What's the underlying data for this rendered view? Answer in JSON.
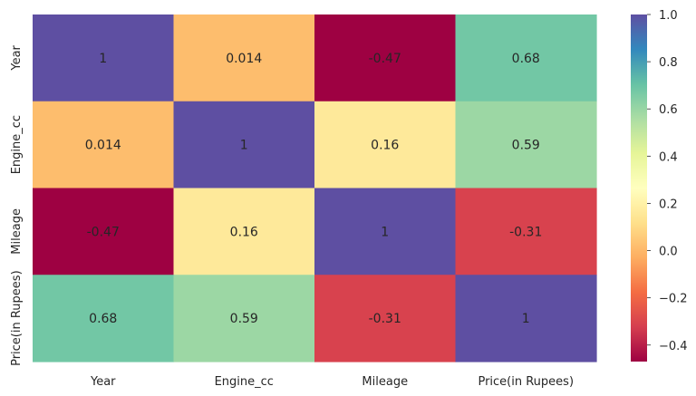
{
  "chart_data": {
    "type": "heatmap",
    "title": "",
    "xlabel": "",
    "ylabel": "",
    "x_labels": [
      "Year",
      "Engine_cc",
      "Mileage",
      "Price(in Rupees)"
    ],
    "y_labels": [
      "Year",
      "Engine_cc",
      "Mileage",
      "Price(in Rupees)"
    ],
    "values": [
      [
        1,
        0.014,
        -0.47,
        0.68
      ],
      [
        0.014,
        1,
        0.16,
        0.59
      ],
      [
        -0.47,
        0.16,
        1,
        -0.31
      ],
      [
        0.68,
        0.59,
        -0.31,
        1
      ]
    ],
    "cell_labels": [
      [
        "1",
        "0.014",
        "-0.47",
        "0.68"
      ],
      [
        "0.014",
        "1",
        "0.16",
        "0.59"
      ],
      [
        "-0.47",
        "0.16",
        "1",
        "-0.31"
      ],
      [
        "0.68",
        "0.59",
        "-0.31",
        "1"
      ]
    ],
    "colormap": "Spectral",
    "colorbar": {
      "range": [
        -0.47,
        1.0
      ],
      "tick_values": [
        1.0,
        0.8,
        0.6,
        0.4,
        0.2,
        0.0,
        -0.2,
        -0.4
      ],
      "tick_labels": [
        "1.0",
        "0.8",
        "0.6",
        "0.4",
        "0.2",
        "0.0",
        "−0.2",
        "−0.4"
      ]
    },
    "grid": false,
    "legend": "colorbar-right"
  }
}
